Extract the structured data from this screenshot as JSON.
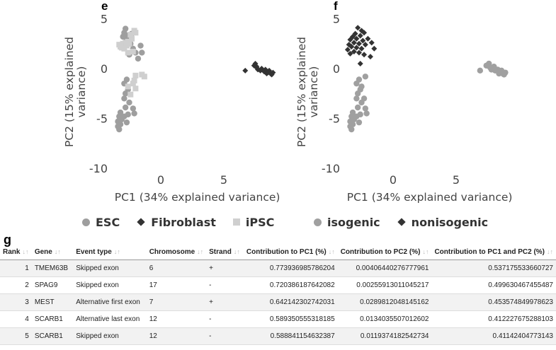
{
  "panels": {
    "e": "e",
    "f": "f",
    "g": "g"
  },
  "colors": {
    "esc": "#9e9e9e",
    "fibroblast": "#333333",
    "ipsc": "#cfcfcf",
    "isogenic": "#a0a0a0",
    "nonisogenic": "#333333",
    "axis_text": "#444444"
  },
  "chart_data": [
    {
      "type": "scatter",
      "title": "",
      "xlabel": "PC1 (34% explained variance)",
      "ylabel": "PC2 (15% explained variance)",
      "xlim": [
        -6,
        9.5
      ],
      "ylim": [
        -11,
        5.5
      ],
      "xticks": [
        0,
        5
      ],
      "xtick_labels": [
        "0",
        "5"
      ],
      "yticks": [
        5,
        0,
        -5,
        -10
      ],
      "ytick_labels": [
        "5",
        "0",
        "-5",
        "-10"
      ],
      "grid": false,
      "legend_position": "bottom",
      "series": [
        {
          "name": "ESC",
          "marker": "circle",
          "color": "#9e9e9e",
          "points": [
            [
              -2.8,
              4.0
            ],
            [
              -2.9,
              3.6
            ],
            [
              -2.6,
              3.3
            ],
            [
              -2.3,
              3.5
            ],
            [
              -2.6,
              3.0
            ],
            [
              -2.7,
              2.9
            ],
            [
              -3.0,
              3.2
            ],
            [
              -2.4,
              2.5
            ],
            [
              -2.9,
              2.2
            ],
            [
              -1.6,
              2.3
            ],
            [
              -2.2,
              2.0
            ],
            [
              -1.8,
              1.0
            ],
            [
              -2.5,
              1.4
            ],
            [
              -2.0,
              1.6
            ],
            [
              -1.5,
              1.6
            ],
            [
              -2.7,
              -1.1
            ],
            [
              -2.9,
              -1.5
            ],
            [
              -2.6,
              -2.1
            ],
            [
              -2.8,
              -2.5
            ],
            [
              -2.9,
              -3.0
            ],
            [
              -2.5,
              -3.4
            ],
            [
              -2.2,
              -4.0
            ],
            [
              -2.8,
              -3.9
            ],
            [
              -2.1,
              -4.5
            ],
            [
              -2.6,
              -4.6
            ],
            [
              -3.2,
              -4.4
            ],
            [
              -2.9,
              -4.8
            ],
            [
              -3.3,
              -4.8
            ],
            [
              -3.1,
              -5.1
            ],
            [
              -3.4,
              -5.3
            ],
            [
              -3.2,
              -5.6
            ],
            [
              -3.4,
              -5.8
            ],
            [
              -3.3,
              -6.1
            ],
            [
              -2.7,
              -5.4
            ]
          ]
        },
        {
          "name": "Fibroblast",
          "marker": "diamond",
          "color": "#333333",
          "points": [
            [
              6.7,
              -0.2
            ],
            [
              7.4,
              0.3
            ],
            [
              7.5,
              0.5
            ],
            [
              7.6,
              0.2
            ],
            [
              7.7,
              -0.1
            ],
            [
              7.6,
              0.1
            ],
            [
              7.9,
              -0.2
            ],
            [
              8.0,
              0.0
            ],
            [
              8.2,
              -0.3
            ],
            [
              8.3,
              -0.1
            ],
            [
              8.5,
              -0.4
            ],
            [
              8.6,
              -0.2
            ],
            [
              8.7,
              -0.5
            ],
            [
              8.9,
              -0.4
            ],
            [
              8.8,
              -0.6
            ],
            [
              8.4,
              -0.5
            ]
          ]
        },
        {
          "name": "iPSC",
          "marker": "square",
          "color": "#cfcfcf",
          "points": [
            [
              -3.2,
              2.2
            ],
            [
              -3.0,
              2.5
            ],
            [
              -2.8,
              2.6
            ],
            [
              -2.6,
              2.7
            ],
            [
              -3.3,
              2.4
            ],
            [
              -3.1,
              2.1
            ],
            [
              -2.7,
              2.3
            ],
            [
              -2.5,
              2.5
            ],
            [
              -2.9,
              2.0
            ],
            [
              -2.3,
              3.0
            ],
            [
              -2.0,
              3.6
            ],
            [
              -2.1,
              3.8
            ],
            [
              -2.4,
              3.4
            ],
            [
              -2.2,
              1.7
            ],
            [
              -2.6,
              1.6
            ],
            [
              -2.0,
              -0.7
            ],
            [
              -1.5,
              -0.6
            ],
            [
              -1.3,
              -0.8
            ],
            [
              -2.1,
              -1.2
            ],
            [
              -2.2,
              -1.5
            ],
            [
              -2.6,
              -1.8
            ],
            [
              -2.4,
              -2.6
            ],
            [
              -2.0,
              -2.0
            ]
          ]
        }
      ]
    },
    {
      "type": "scatter",
      "title": "",
      "xlabel": "PC1 (34% explained variance)",
      "ylabel": "PC2 (15% explained variance)",
      "xlim": [
        -6,
        9.5
      ],
      "ylim": [
        -11,
        5.5
      ],
      "xticks": [
        0,
        5
      ],
      "xtick_labels": [
        "0",
        "5"
      ],
      "yticks": [
        5,
        0,
        -5,
        -10
      ],
      "ytick_labels": [
        "5",
        "0",
        "-5",
        "-10"
      ],
      "grid": false,
      "legend_position": "bottom",
      "series": [
        {
          "name": "isogenic",
          "marker": "circle",
          "color": "#a0a0a0",
          "points": [
            [
              -2.7,
              -1.1
            ],
            [
              -2.9,
              -1.5
            ],
            [
              -2.6,
              -2.1
            ],
            [
              -2.8,
              -2.5
            ],
            [
              -2.9,
              -3.0
            ],
            [
              -2.5,
              -3.4
            ],
            [
              -2.2,
              -4.0
            ],
            [
              -2.8,
              -3.9
            ],
            [
              -2.1,
              -4.5
            ],
            [
              -2.6,
              -4.6
            ],
            [
              -3.2,
              -4.4
            ],
            [
              -2.9,
              -4.8
            ],
            [
              -3.3,
              -4.8
            ],
            [
              -3.1,
              -5.1
            ],
            [
              -3.4,
              -5.3
            ],
            [
              -3.2,
              -5.6
            ],
            [
              -3.4,
              -5.8
            ],
            [
              -3.3,
              -6.1
            ],
            [
              -2.7,
              -5.4
            ],
            [
              -2.2,
              -0.8
            ],
            [
              -2.5,
              -1.8
            ],
            [
              -2.3,
              -3.0
            ],
            [
              6.9,
              -0.2
            ],
            [
              7.4,
              0.3
            ],
            [
              7.6,
              0.5
            ],
            [
              7.7,
              0.1
            ],
            [
              7.8,
              -0.1
            ],
            [
              8.0,
              0.2
            ],
            [
              8.1,
              -0.2
            ],
            [
              8.3,
              -0.1
            ],
            [
              8.5,
              -0.4
            ],
            [
              8.6,
              -0.2
            ],
            [
              8.7,
              -0.5
            ],
            [
              8.9,
              -0.4
            ],
            [
              8.8,
              -0.6
            ],
            [
              8.4,
              -0.5
            ],
            [
              7.9,
              0.0
            ]
          ]
        },
        {
          "name": "nonisogenic",
          "marker": "diamond",
          "color": "#333333",
          "points": [
            [
              -2.8,
              4.1
            ],
            [
              -2.5,
              3.8
            ],
            [
              -3.0,
              3.5
            ],
            [
              -2.6,
              3.3
            ],
            [
              -2.3,
              3.6
            ],
            [
              -3.2,
              3.2
            ],
            [
              -2.9,
              3.0
            ],
            [
              -2.4,
              2.8
            ],
            [
              -3.4,
              2.9
            ],
            [
              -3.1,
              2.6
            ],
            [
              -2.7,
              2.5
            ],
            [
              -3.5,
              2.4
            ],
            [
              -2.2,
              2.4
            ],
            [
              -3.3,
              2.2
            ],
            [
              -2.9,
              2.1
            ],
            [
              -2.5,
              2.0
            ],
            [
              -3.6,
              1.9
            ],
            [
              -3.1,
              1.7
            ],
            [
              -2.7,
              1.6
            ],
            [
              -3.4,
              1.5
            ],
            [
              -2.3,
              1.4
            ],
            [
              -1.7,
              2.6
            ],
            [
              -1.5,
              2.0
            ],
            [
              -1.8,
              1.2
            ],
            [
              -2.0,
              3.0
            ],
            [
              -2.6,
              0.5
            ]
          ]
        }
      ]
    }
  ],
  "legend_e": [
    {
      "label": "ESC",
      "marker": "circle",
      "color": "#9e9e9e"
    },
    {
      "label": "Fibroblast",
      "marker": "diamond",
      "color": "#333333"
    },
    {
      "label": "iPSC",
      "marker": "square",
      "color": "#cfcfcf"
    }
  ],
  "legend_f": [
    {
      "label": "isogenic",
      "marker": "circle",
      "color": "#a0a0a0"
    },
    {
      "label": "nonisogenic",
      "marker": "diamond",
      "color": "#333333"
    }
  ],
  "table": {
    "headers": [
      "Rank",
      "Gene",
      "Event type",
      "Chromosome",
      "Strand",
      "Contribution to PC1 (%)",
      "Contribution to PC2 (%)",
      "Contribution to PC1 and PC2 (%)"
    ],
    "rows": [
      [
        "1",
        "TMEM63B",
        "Skipped exon",
        "6",
        "+",
        "0.773936985786204",
        "0.00406440276777961",
        "0.537175533660727"
      ],
      [
        "2",
        "SPAG9",
        "Skipped exon",
        "17",
        "-",
        "0.720386187642082",
        "0.00255913011045217",
        "0.499630467455487"
      ],
      [
        "3",
        "MEST",
        "Alternative first exon",
        "7",
        "+",
        "0.642142302742031",
        "0.0289812048145162",
        "0.453574849978623"
      ],
      [
        "4",
        "SCARB1",
        "Alternative last exon",
        "12",
        "-",
        "0.589350555318185",
        "0.0134035507012602",
        "0.412227675288103"
      ],
      [
        "5",
        "SCARB1",
        "Skipped exon",
        "12",
        "-",
        "0.588841154632387",
        "0.0119374182542734",
        "0.41142404773143"
      ]
    ]
  }
}
